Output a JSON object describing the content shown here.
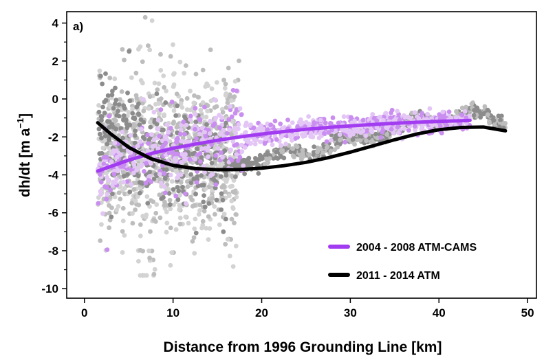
{
  "chart_data": {
    "type": "scatter",
    "panel_label": "a)",
    "xlabel": "Distance from 1996 Grounding Line [km]",
    "ylabel_main": "dh/dt ",
    "ylabel_unit_prefix": "[m a",
    "ylabel_unit_exp": "−1",
    "ylabel_unit_suffix": "]",
    "xlim": [
      -2,
      51
    ],
    "ylim": [
      -10.5,
      4.6
    ],
    "xticks": [
      0,
      10,
      20,
      30,
      40,
      50
    ],
    "yticks": [
      -10,
      -8,
      -6,
      -4,
      -2,
      0,
      2,
      4
    ],
    "grid": false,
    "legend_position": "bottom-right",
    "colors": {
      "scatter_gray_light": "#d3d3d3",
      "scatter_gray_mid": "#bdbdbd",
      "scatter_gray_dark": "#8c8c8c",
      "scatter_purple_light": "#e3c6f5",
      "scatter_purple_mid": "#c98ef0",
      "fit_2004_2008": "#a23cf0",
      "fit_2011_2014": "#000000"
    },
    "series": [
      {
        "name": "2004 - 2008 ATM-CAMS",
        "color": "#a23cf0",
        "x": [
          1.5,
          3,
          5,
          7.5,
          10,
          12.5,
          15,
          17.5,
          20,
          22.5,
          25,
          27.5,
          30,
          32.5,
          35,
          37.5,
          40,
          42.5,
          43.5
        ],
        "y": [
          -3.8,
          -3.55,
          -3.22,
          -2.88,
          -2.6,
          -2.38,
          -2.18,
          -2.0,
          -1.85,
          -1.72,
          -1.6,
          -1.5,
          -1.42,
          -1.35,
          -1.28,
          -1.23,
          -1.18,
          -1.15,
          -1.13
        ]
      },
      {
        "name": "2011 - 2014 ATM",
        "color": "#000000",
        "x": [
          1.5,
          3,
          5,
          7.5,
          10,
          12.5,
          15,
          17.5,
          20,
          22.5,
          25,
          27.5,
          30,
          32.5,
          35,
          37.5,
          40,
          42.5,
          45,
          47.5
        ],
        "y": [
          -1.25,
          -1.85,
          -2.55,
          -3.15,
          -3.5,
          -3.67,
          -3.73,
          -3.72,
          -3.65,
          -3.52,
          -3.34,
          -3.1,
          -2.8,
          -2.48,
          -2.15,
          -1.85,
          -1.62,
          -1.5,
          -1.48,
          -1.68
        ]
      }
    ]
  }
}
